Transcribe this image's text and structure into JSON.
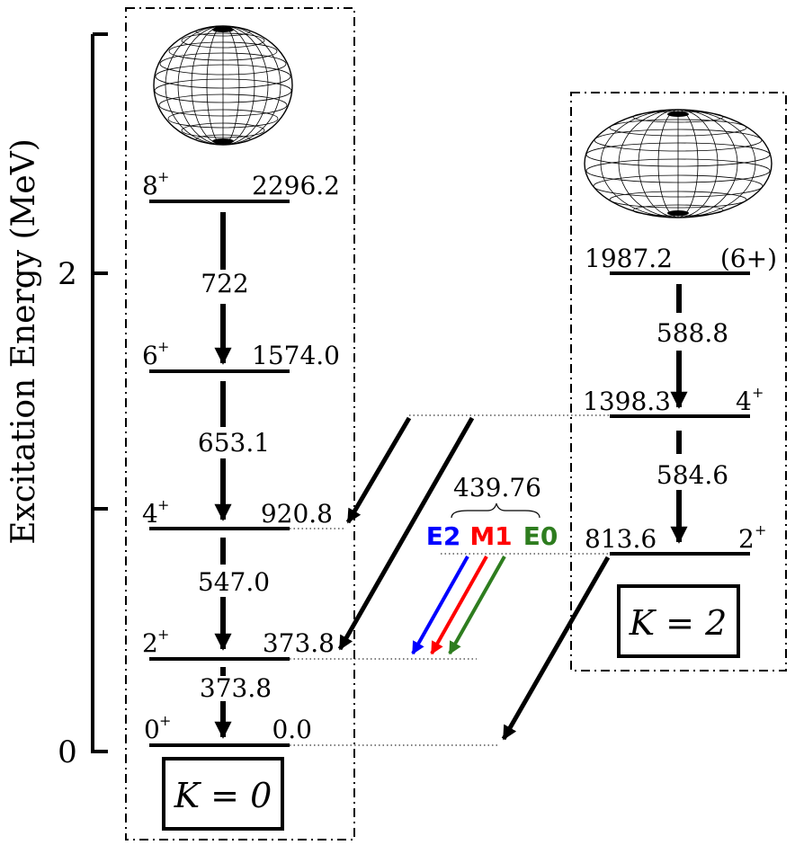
{
  "axis": {
    "label": "Excitation Energy (MeV)",
    "ticks": [
      "0",
      "2"
    ]
  },
  "band_k0": {
    "label": "K = 0",
    "levels": [
      {
        "spin": "8",
        "parity": "+",
        "energy": "2296.2"
      },
      {
        "spin": "6",
        "parity": "+",
        "energy": "1574.0"
      },
      {
        "spin": "4",
        "parity": "+",
        "energy": "920.8"
      },
      {
        "spin": "2",
        "parity": "+",
        "energy": "373.8"
      },
      {
        "spin": "0",
        "parity": "+",
        "energy": "0.0"
      }
    ],
    "transitions": [
      "722",
      "653.1",
      "547.0",
      "373.8"
    ]
  },
  "band_k2": {
    "label": "K = 2",
    "levels": [
      {
        "spin": "(6+)",
        "parity": "",
        "energy": "1987.2"
      },
      {
        "spin": "4",
        "parity": "+",
        "energy": "1398.3"
      },
      {
        "spin": "2",
        "parity": "+",
        "energy": "813.6"
      }
    ],
    "transitions": [
      "588.8",
      "584.6"
    ]
  },
  "interband": {
    "energy": "439.76",
    "multipoles": [
      {
        "label": "E2",
        "color": "#0000ff"
      },
      {
        "label": "M1",
        "color": "#ff0000"
      },
      {
        "label": "E0",
        "color": "#2e7d1f"
      }
    ]
  }
}
